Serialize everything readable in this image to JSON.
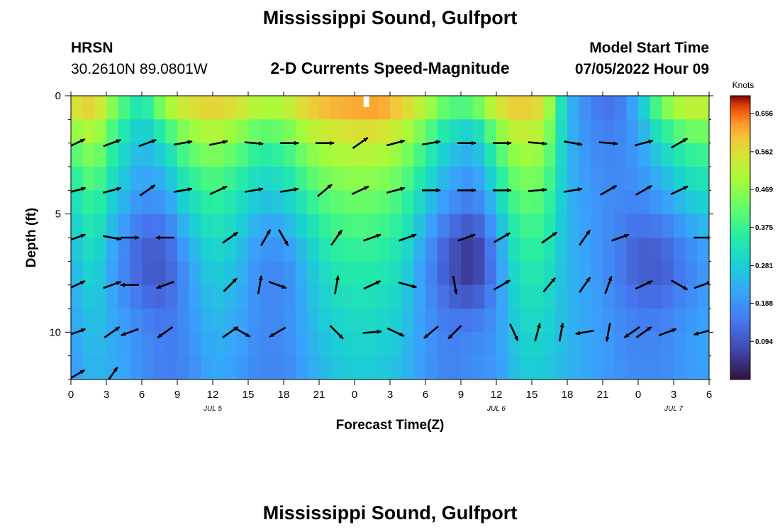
{
  "header": {
    "title": "Mississippi Sound, Gulfport",
    "station_code": "HRSN",
    "coordinates": "30.2610N  89.0801W",
    "subtitle": "2-D Currents Speed-Magnitude",
    "model_start_label": "Model Start Time",
    "model_start_value": "07/05/2022 Hour 09",
    "footer_title": "Mississippi Sound, Gulfport"
  },
  "chart_data": {
    "type": "heatmap",
    "title": "2-D Currents Speed-Magnitude",
    "xlabel": "Forecast Time(Z)",
    "ylabel": "Depth (ft)",
    "x_tick_labels": [
      "0",
      "3",
      "6",
      "9",
      "12",
      "15",
      "18",
      "21",
      "0",
      "3",
      "6",
      "9",
      "12",
      "15",
      "18",
      "21",
      "0",
      "3",
      "6"
    ],
    "date_labels": [
      {
        "text": "JUL 5",
        "at_hour": 12
      },
      {
        "text": "JUL 6",
        "at_hour": 36
      },
      {
        "text": "JUL 7",
        "at_hour": 51
      }
    ],
    "xlim": [
      0,
      54
    ],
    "y_tick_labels": [
      "0",
      "5",
      "10"
    ],
    "y_ticks": [
      0,
      5,
      10
    ],
    "ylim": [
      12,
      0
    ],
    "colorbar": {
      "units": "Knots",
      "ticks": [
        "0.094",
        "0.188",
        "0.281",
        "0.375",
        "0.469",
        "0.562",
        "0.656"
      ],
      "tick_values": [
        0.094,
        0.188,
        0.281,
        0.375,
        0.469,
        0.562,
        0.656
      ],
      "range": [
        0.0,
        0.7
      ]
    },
    "marker": {
      "hour": 25,
      "depth": 0.3,
      "color": "#ffffff"
    },
    "depths": [
      0.5,
      1.5,
      2.5,
      3.5,
      4.5,
      5.5,
      6.5,
      7.5,
      8.5,
      9.5,
      10.5,
      11.5
    ],
    "speed_profile": {
      "x": [
        0,
        2,
        4,
        6,
        8,
        10,
        12,
        14,
        16,
        18,
        20,
        22,
        24,
        26,
        28,
        30,
        32,
        34,
        36,
        38,
        40,
        42,
        44,
        46,
        48,
        50,
        52,
        54
      ],
      "surface": [
        0.6,
        0.62,
        0.45,
        0.35,
        0.55,
        0.6,
        0.62,
        0.6,
        0.55,
        0.55,
        0.62,
        0.64,
        0.65,
        0.66,
        0.62,
        0.55,
        0.45,
        0.5,
        0.6,
        0.62,
        0.58,
        0.25,
        0.15,
        0.12,
        0.25,
        0.5,
        0.58,
        0.56
      ],
      "bottom": [
        0.18,
        0.2,
        0.22,
        0.18,
        0.15,
        0.13,
        0.17,
        0.18,
        0.15,
        0.14,
        0.16,
        0.18,
        0.2,
        0.21,
        0.2,
        0.18,
        0.16,
        0.18,
        0.19,
        0.2,
        0.2,
        0.24,
        0.22,
        0.19,
        0.17,
        0.17,
        0.19,
        0.2
      ],
      "decay": [
        0.3,
        0.45,
        0.25,
        0.18,
        0.2,
        0.4,
        0.45,
        0.35,
        0.3,
        0.35,
        0.45,
        0.55,
        0.55,
        0.5,
        0.45,
        0.3,
        0.2,
        0.1,
        0.25,
        0.55,
        0.6,
        0.55,
        0.35,
        0.2,
        0.2,
        0.2,
        0.25,
        0.3
      ],
      "lowcore": [
        0.0,
        0.0,
        0.04,
        0.06,
        0.05,
        0.02,
        0.0,
        0.0,
        0.02,
        0.03,
        0.02,
        0.0,
        0.0,
        0.0,
        0.0,
        0.03,
        0.06,
        0.1,
        0.04,
        0.0,
        0.0,
        0.0,
        0.0,
        0.02,
        0.05,
        0.06,
        0.05,
        0.03
      ]
    },
    "vectors": [
      {
        "depth": 2,
        "hours": [
          0,
          3,
          6,
          9,
          12,
          15,
          18,
          21,
          24,
          27,
          30,
          33,
          36,
          39,
          42,
          45,
          48,
          51
        ],
        "angles": [
          -25,
          -20,
          -20,
          -10,
          -12,
          5,
          0,
          0,
          -35,
          -15,
          -10,
          0,
          0,
          5,
          10,
          5,
          -15,
          -30
        ]
      },
      {
        "depth": 4,
        "hours": [
          0,
          3,
          6,
          9,
          12,
          15,
          18,
          21,
          24,
          27,
          30,
          33,
          36,
          39,
          42,
          45,
          48,
          51
        ],
        "angles": [
          -15,
          -15,
          -35,
          -10,
          -25,
          -10,
          -10,
          -40,
          -25,
          -15,
          0,
          0,
          0,
          -5,
          -10,
          -30,
          -30,
          -25
        ]
      },
      {
        "depth": 6,
        "hours": [
          0,
          3,
          4.5,
          7.5,
          13,
          16,
          17.5,
          22,
          25,
          28,
          33,
          36,
          40,
          43,
          46,
          53
        ],
        "angles": [
          -20,
          10,
          0,
          180,
          -35,
          -60,
          60,
          -55,
          -20,
          -20,
          -20,
          -30,
          -35,
          -55,
          -20,
          0
        ]
      },
      {
        "depth": 8,
        "hours": [
          0,
          3,
          4.5,
          7.5,
          13,
          15.5,
          17,
          22,
          25,
          28,
          32,
          36,
          40,
          43,
          45,
          48,
          51,
          53
        ],
        "angles": [
          -25,
          -20,
          180,
          160,
          -45,
          -80,
          20,
          -80,
          -25,
          15,
          80,
          -30,
          -50,
          -55,
          -70,
          -25,
          30,
          -20
        ]
      },
      {
        "depth": 10,
        "hours": [
          0,
          3,
          4.5,
          7.5,
          13,
          14,
          17,
          22,
          25,
          27,
          30,
          32,
          37,
          39,
          41,
          43,
          45,
          47,
          48,
          50,
          53
        ],
        "angles": [
          -20,
          -35,
          160,
          145,
          -35,
          30,
          150,
          45,
          -5,
          25,
          140,
          135,
          65,
          -75,
          -80,
          170,
          100,
          145,
          -35,
          -20,
          165
        ]
      },
      {
        "depth": 11.8,
        "hours": [
          0,
          3
        ],
        "angles": [
          -30,
          -55
        ]
      }
    ]
  }
}
